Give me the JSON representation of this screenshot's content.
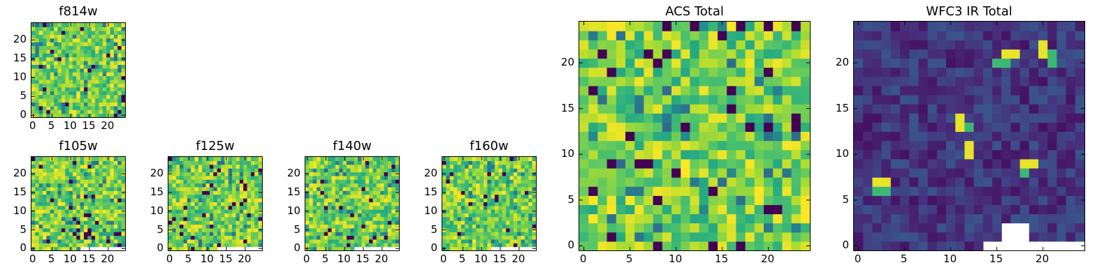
{
  "chart_data": [
    {
      "id": "f814w",
      "type": "heatmap",
      "title": "f814w",
      "xlim": [
        0,
        25
      ],
      "ylim": [
        0,
        25
      ],
      "nx": 25,
      "ny": 25,
      "xticks": [
        0,
        5,
        10,
        15,
        20
      ],
      "yticks": [
        0,
        5,
        10,
        15,
        20
      ],
      "colormap": "viridis",
      "pattern": "noisy"
    },
    {
      "id": "f105w",
      "type": "heatmap",
      "title": "f105w",
      "xlim": [
        0,
        25
      ],
      "ylim": [
        0,
        25
      ],
      "nx": 25,
      "ny": 25,
      "xticks": [
        0,
        5,
        10,
        15,
        20
      ],
      "yticks": [
        0,
        5,
        10,
        15,
        20
      ],
      "colormap": "viridis",
      "pattern": "noisy"
    },
    {
      "id": "f125w",
      "type": "heatmap",
      "title": "f125w",
      "xlim": [
        0,
        25
      ],
      "ylim": [
        0,
        25
      ],
      "nx": 25,
      "ny": 25,
      "xticks": [
        0,
        5,
        10,
        15,
        20
      ],
      "yticks": [
        0,
        5,
        10,
        15,
        20
      ],
      "colormap": "viridis",
      "pattern": "noisy"
    },
    {
      "id": "f140w",
      "type": "heatmap",
      "title": "f140w",
      "xlim": [
        0,
        25
      ],
      "ylim": [
        0,
        25
      ],
      "nx": 25,
      "ny": 25,
      "xticks": [
        0,
        5,
        10,
        15,
        20
      ],
      "yticks": [
        0,
        5,
        10,
        15,
        20
      ],
      "colormap": "viridis",
      "pattern": "noisy"
    },
    {
      "id": "f160w",
      "type": "heatmap",
      "title": "f160w",
      "xlim": [
        0,
        25
      ],
      "ylim": [
        0,
        25
      ],
      "nx": 25,
      "ny": 25,
      "xticks": [
        0,
        5,
        10,
        15,
        20
      ],
      "yticks": [
        0,
        5,
        10,
        15,
        20
      ],
      "colormap": "viridis",
      "pattern": "noisy"
    },
    {
      "id": "acs",
      "type": "heatmap",
      "title": "ACS Total",
      "xlim": [
        0,
        25
      ],
      "ylim": [
        0,
        25
      ],
      "nx": 25,
      "ny": 25,
      "xticks": [
        0,
        5,
        10,
        15,
        20
      ],
      "yticks": [
        0,
        5,
        10,
        15,
        20
      ],
      "colormap": "viridis",
      "pattern": "noisy"
    },
    {
      "id": "wfc3",
      "type": "heatmap",
      "title": "WFC3 IR Total",
      "xlim": [
        0,
        25
      ],
      "ylim": [
        0,
        25
      ],
      "nx": 25,
      "ny": 25,
      "xticks": [
        0,
        5,
        10,
        15,
        20
      ],
      "yticks": [
        0,
        5,
        10,
        15,
        20
      ],
      "colormap": "viridis",
      "pattern": "sparse",
      "bright_pixels": [
        [
          16,
          21
        ],
        [
          17,
          21
        ],
        [
          20,
          22
        ],
        [
          20,
          21
        ],
        [
          11,
          14
        ],
        [
          11,
          13
        ],
        [
          12,
          11
        ],
        [
          12,
          10
        ],
        [
          18,
          9
        ],
        [
          19,
          9
        ],
        [
          3,
          7
        ],
        [
          2,
          7
        ]
      ],
      "mid_pixels": [
        [
          16,
          20
        ],
        [
          15,
          20
        ],
        [
          21,
          20
        ],
        [
          12,
          13
        ],
        [
          18,
          8
        ],
        [
          2,
          6
        ],
        [
          3,
          6
        ],
        [
          21,
          21
        ]
      ],
      "blank_pixels": [
        [
          14,
          0
        ],
        [
          15,
          0
        ],
        [
          16,
          0
        ],
        [
          17,
          0
        ],
        [
          18,
          0
        ],
        [
          19,
          0
        ],
        [
          20,
          0
        ],
        [
          21,
          0
        ],
        [
          22,
          0
        ],
        [
          23,
          0
        ],
        [
          24,
          0
        ],
        [
          16,
          1
        ],
        [
          17,
          1
        ],
        [
          18,
          1
        ],
        [
          16,
          2
        ],
        [
          17,
          2
        ],
        [
          18,
          2
        ]
      ]
    }
  ]
}
